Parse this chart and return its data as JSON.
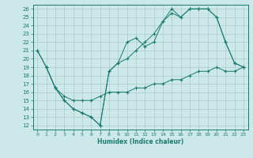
{
  "xlabel": "Humidex (Indice chaleur)",
  "bg_color": "#cce8e8",
  "line_color": "#1a7a6e",
  "grid_color": "#aacccc",
  "xlim": [
    -0.5,
    23.5
  ],
  "ylim": [
    11.5,
    26.5
  ],
  "xticks": [
    0,
    1,
    2,
    3,
    4,
    5,
    6,
    7,
    8,
    9,
    10,
    11,
    12,
    13,
    14,
    15,
    16,
    17,
    18,
    19,
    20,
    21,
    22,
    23
  ],
  "yticks": [
    12,
    13,
    14,
    15,
    16,
    17,
    18,
    19,
    20,
    21,
    22,
    23,
    24,
    25,
    26
  ],
  "line1_x": [
    0,
    1,
    2,
    3,
    4,
    5,
    6,
    7,
    8,
    9,
    10,
    11,
    12,
    13,
    14,
    15,
    16,
    17,
    18,
    19,
    20,
    21,
    22,
    23
  ],
  "line1_y": [
    21,
    19,
    16.5,
    15,
    14,
    13.5,
    13,
    12,
    18.5,
    19.5,
    22,
    22.5,
    21.5,
    22,
    24.5,
    25.5,
    25,
    26,
    26,
    26,
    25,
    22,
    19.5,
    19
  ],
  "line2_x": [
    0,
    1,
    2,
    3,
    4,
    5,
    6,
    7,
    8,
    9,
    10,
    11,
    12,
    13,
    14,
    15,
    16,
    17,
    18,
    19,
    20,
    21,
    22,
    23
  ],
  "line2_y": [
    21,
    19,
    16.5,
    15,
    14,
    13.5,
    13,
    12,
    18.5,
    19.5,
    20,
    21,
    22,
    23,
    24.5,
    26,
    25,
    26,
    26,
    26,
    25,
    22,
    19.5,
    19
  ],
  "line3_x": [
    1,
    2,
    3,
    4,
    5,
    6,
    7,
    8,
    9,
    10,
    11,
    12,
    13,
    14,
    15,
    16,
    17,
    18,
    19,
    20,
    21,
    22,
    23
  ],
  "line3_y": [
    19,
    16.5,
    15.5,
    15,
    15,
    15,
    15.5,
    16,
    16,
    16,
    16.5,
    16.5,
    17,
    17,
    17.5,
    17.5,
    18,
    18.5,
    18.5,
    19,
    18.5,
    18.5,
    19
  ]
}
